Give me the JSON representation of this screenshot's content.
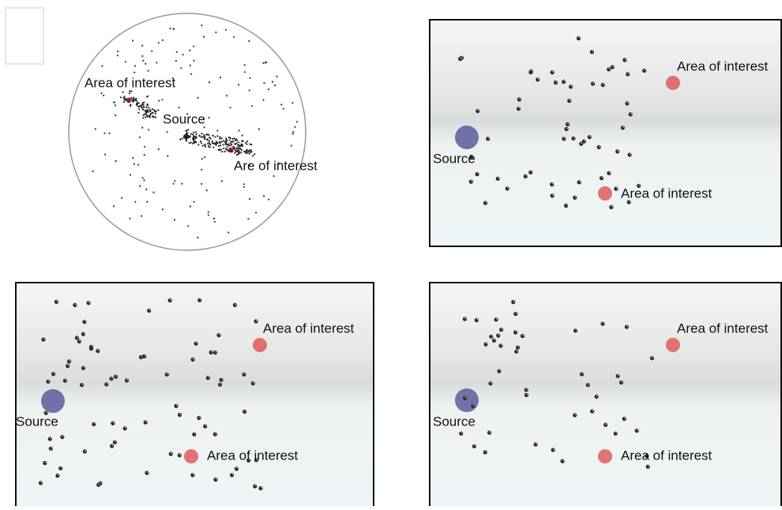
{
  "panels": [
    {
      "labels": [
        "Area of interest",
        "Source",
        "Are of interest"
      ]
    },
    {
      "labels": [
        "Area of interest",
        "Source",
        "Area of interest"
      ]
    },
    {
      "labels": [
        "Area of interest",
        "Source",
        "Area of interest"
      ]
    },
    {
      "labels": [
        "Area of interest",
        "Source",
        "Area of interest"
      ]
    }
  ]
}
